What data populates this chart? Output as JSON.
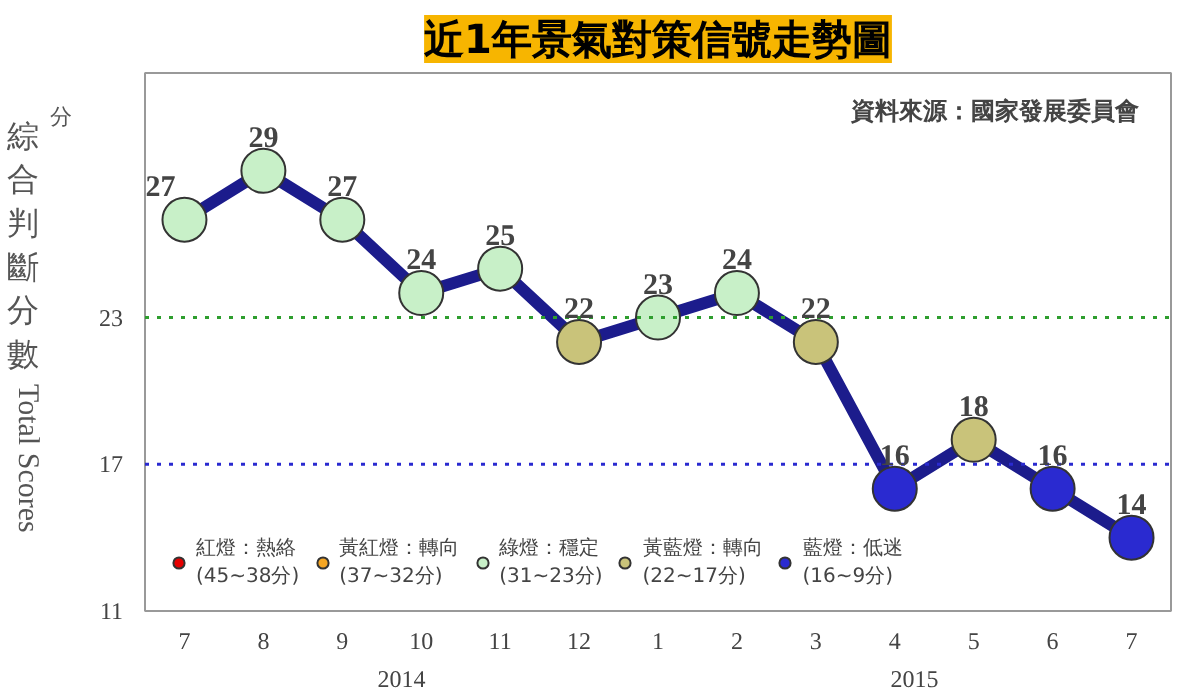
{
  "chart_data": {
    "type": "line",
    "title": "近1年景氣對策信號走勢圖",
    "ylabel": "綜合判斷分數",
    "annotations": [
      "資料來源：國家發展委員會",
      "分",
      "Total Scores",
      "2014",
      "2015"
    ],
    "categories": [
      "7",
      "8",
      "9",
      "10",
      "11",
      "12",
      "1",
      "2",
      "3",
      "4",
      "5",
      "6",
      "7"
    ],
    "ylim": [
      11,
      33
    ],
    "yticks": [
      11,
      17,
      23
    ],
    "series": [
      {
        "color": "#1c1c8c",
        "values": [
          27,
          29,
          27,
          24,
          25,
          22,
          23,
          24,
          22,
          16,
          18,
          16,
          14
        ]
      },
      {
        "type": "scatter",
        "marker": "circle",
        "name": "紅燈：熱絡\n(45~38分)",
        "color": "#e60000",
        "values": [
          null,
          null,
          null,
          null,
          null,
          null,
          null,
          null,
          null,
          null,
          null,
          null,
          null
        ]
      },
      {
        "type": "scatter",
        "marker": "circle",
        "name": "黃紅燈：轉向\n(37~32分)",
        "color": "#f5a623",
        "values": [
          null,
          null,
          null,
          null,
          null,
          null,
          null,
          null,
          null,
          null,
          null,
          null,
          null
        ]
      },
      {
        "type": "scatter",
        "marker": "circle",
        "name": "綠燈：穩定\n(31~23分)",
        "color": "#c8f0c8",
        "values": [
          27,
          29,
          27,
          24,
          25,
          null,
          23,
          24,
          null,
          null,
          null,
          null,
          null
        ],
        "value_labels": [
          "27",
          "29",
          "27",
          "24",
          "25",
          null,
          "23",
          "24",
          null,
          null,
          null,
          null,
          null
        ]
      },
      {
        "type": "scatter",
        "marker": "circle",
        "name": "黃藍燈：轉向\n(22~17分)",
        "color": "#c9c37a",
        "values": [
          null,
          null,
          null,
          null,
          null,
          22,
          null,
          null,
          22,
          null,
          18,
          null,
          null
        ],
        "value_labels": [
          null,
          null,
          null,
          null,
          null,
          "22",
          null,
          null,
          "22",
          null,
          "18",
          null,
          null
        ]
      },
      {
        "type": "scatter",
        "marker": "circle",
        "name": "藍燈：低迷\n(16~9分)",
        "color": "#2a2ad0",
        "values": [
          null,
          null,
          null,
          null,
          null,
          null,
          null,
          null,
          null,
          16,
          null,
          16,
          14
        ],
        "value_labels": [
          null,
          null,
          null,
          null,
          null,
          null,
          null,
          null,
          null,
          "16",
          null,
          "16",
          "14"
        ]
      }
    ],
    "ref_lines": [
      {
        "axis": "y",
        "value": 23,
        "color": "#2e9e2e",
        "line_style": "dotted"
      },
      {
        "axis": "y",
        "value": 17,
        "color": "#2a2ad0",
        "line_style": "dotted"
      }
    ],
    "legend": "bottom left",
    "grid": false
  }
}
